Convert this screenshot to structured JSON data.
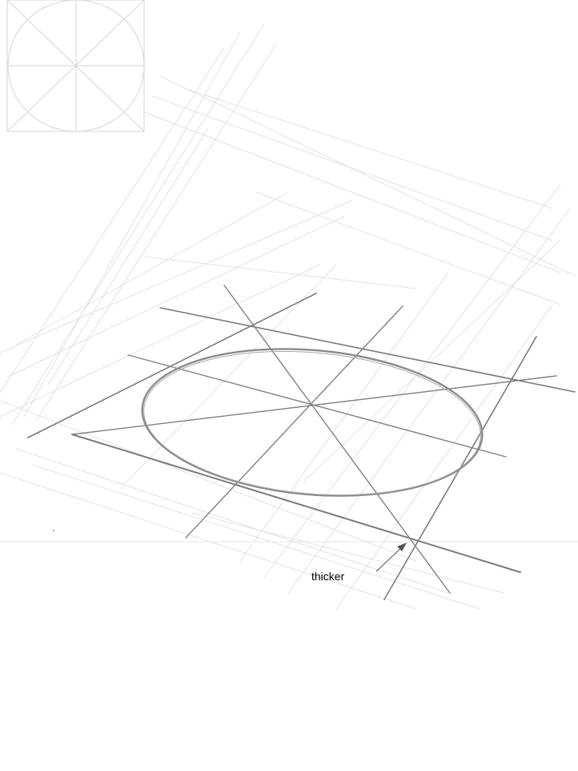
{
  "annotation": {
    "label": "thicker"
  },
  "colors": {
    "background": "#ffffff",
    "faint_construction": "#d9d9d9",
    "reference_grid": "#d6d6d6",
    "main_lines": "#7a7a7a",
    "ellipse": "#8a8a8a",
    "arrow": "#555555",
    "horizon": "#e6e6e6"
  },
  "icons": {
    "reference": "circle-in-square-icon",
    "arrow": "arrow-pointer-icon"
  }
}
